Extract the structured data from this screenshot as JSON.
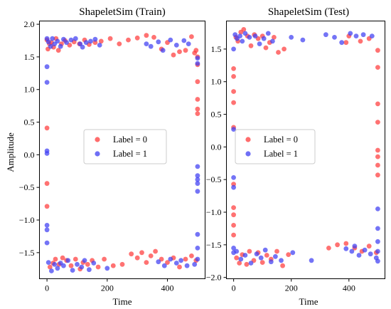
{
  "colors": {
    "label0": "#ff3b3b",
    "label1": "#3f3ff2"
  },
  "chart_data": [
    {
      "type": "scatter",
      "title": "ShapeletSim (Train)",
      "xlabel": "Time",
      "ylabel": "Amplitude",
      "xlim": [
        -25,
        525
      ],
      "ylim": [
        -1.9,
        2.05
      ],
      "xticks": [
        0,
        200,
        400
      ],
      "xtick_labels": [
        "0",
        "200",
        "400"
      ],
      "yticks": [
        2.0,
        1.5,
        1.0,
        0.5,
        0.0,
        -0.5,
        -1.0,
        -1.5
      ],
      "ytick_labels": [
        "2.0",
        "1.5",
        "1.0",
        "0.5",
        "0.0",
        "−0.5",
        "−1.0",
        "−1.5"
      ],
      "legend": {
        "position": "center",
        "entries": [
          "Label = 0",
          "Label = 1"
        ]
      },
      "grid": false,
      "series": [
        {
          "name": "Label = 0",
          "points": [
            [
              0,
              1.76
            ],
            [
              0,
              0.41
            ],
            [
              0,
              -0.44
            ],
            [
              0,
              -0.79
            ],
            [
              3,
              1.62
            ],
            [
              8,
              1.7
            ],
            [
              15,
              1.72
            ],
            [
              22,
              1.65
            ],
            [
              30,
              1.78
            ],
            [
              38,
              1.6
            ],
            [
              48,
              1.7
            ],
            [
              60,
              1.75
            ],
            [
              75,
              1.68
            ],
            [
              90,
              1.73
            ],
            [
              108,
              1.7
            ],
            [
              125,
              1.76
            ],
            [
              140,
              1.69
            ],
            [
              160,
              1.72
            ],
            [
              180,
              1.74
            ],
            [
              210,
              1.78
            ],
            [
              240,
              1.7
            ],
            [
              270,
              1.76
            ],
            [
              300,
              1.79
            ],
            [
              330,
              1.83
            ],
            [
              355,
              1.8
            ],
            [
              380,
              1.62
            ],
            [
              400,
              1.72
            ],
            [
              420,
              1.53
            ],
            [
              440,
              1.58
            ],
            [
              460,
              1.6
            ],
            [
              480,
              1.81
            ],
            [
              490,
              1.56
            ],
            [
              495,
              1.6
            ],
            [
              500,
              1.5
            ],
            [
              500,
              1.38
            ],
            [
              500,
              1.12
            ],
            [
              500,
              0.85
            ],
            [
              500,
              0.7
            ],
            [
              500,
              0.63
            ],
            [
              10,
              -1.72
            ],
            [
              20,
              -1.66
            ],
            [
              28,
              -1.6
            ],
            [
              40,
              -1.68
            ],
            [
              52,
              -1.58
            ],
            [
              65,
              -1.62
            ],
            [
              80,
              -1.7
            ],
            [
              95,
              -1.6
            ],
            [
              110,
              -1.75
            ],
            [
              120,
              -1.65
            ],
            [
              135,
              -1.68
            ],
            [
              150,
              -1.62
            ],
            [
              170,
              -1.72
            ],
            [
              190,
              -1.6
            ],
            [
              220,
              -1.7
            ],
            [
              250,
              -1.68
            ],
            [
              280,
              -1.52
            ],
            [
              300,
              -1.58
            ],
            [
              315,
              -1.5
            ],
            [
              330,
              -1.65
            ],
            [
              345,
              -1.55
            ],
            [
              360,
              -1.48
            ],
            [
              380,
              -1.6
            ],
            [
              400,
              -1.65
            ],
            [
              420,
              -1.58
            ],
            [
              440,
              -1.72
            ],
            [
              460,
              -1.6
            ],
            [
              480,
              -1.55
            ],
            [
              495,
              -1.62
            ]
          ]
        },
        {
          "name": "Label = 1",
          "points": [
            [
              0,
              1.78
            ],
            [
              0,
              1.35
            ],
            [
              0,
              1.11
            ],
            [
              0,
              0.06
            ],
            [
              0,
              0.02
            ],
            [
              0,
              -1.08
            ],
            [
              0,
              -1.15
            ],
            [
              0,
              -1.35
            ],
            [
              5,
              1.73
            ],
            [
              12,
              1.66
            ],
            [
              18,
              1.78
            ],
            [
              25,
              1.7
            ],
            [
              35,
              1.74
            ],
            [
              45,
              1.66
            ],
            [
              55,
              1.77
            ],
            [
              65,
              1.72
            ],
            [
              80,
              1.76
            ],
            [
              95,
              1.78
            ],
            [
              110,
              1.7
            ],
            [
              118,
              1.65
            ],
            [
              130,
              1.72
            ],
            [
              145,
              1.74
            ],
            [
              160,
              1.77
            ],
            [
              175,
              1.68
            ],
            [
              330,
              1.7
            ],
            [
              345,
              1.66
            ],
            [
              370,
              1.73
            ],
            [
              385,
              1.6
            ],
            [
              410,
              1.76
            ],
            [
              430,
              1.68
            ],
            [
              455,
              1.75
            ],
            [
              470,
              1.7
            ],
            [
              500,
              1.48
            ],
            [
              500,
              1.4
            ],
            [
              500,
              -0.18
            ],
            [
              500,
              -0.32
            ],
            [
              500,
              -0.38
            ],
            [
              500,
              -0.44
            ],
            [
              500,
              -0.56
            ],
            [
              500,
              -1.22
            ],
            [
              500,
              -1.43
            ],
            [
              500,
              -1.6
            ],
            [
              5,
              -1.65
            ],
            [
              15,
              -1.78
            ],
            [
              25,
              -1.68
            ],
            [
              35,
              -1.74
            ],
            [
              45,
              -1.66
            ],
            [
              55,
              -1.7
            ],
            [
              70,
              -1.62
            ],
            [
              85,
              -1.77
            ],
            [
              100,
              -1.68
            ],
            [
              115,
              -1.72
            ],
            [
              125,
              -1.62
            ],
            [
              140,
              -1.76
            ],
            [
              155,
              -1.66
            ],
            [
              200,
              -1.74
            ],
            [
              370,
              -1.64
            ],
            [
              390,
              -1.7
            ],
            [
              410,
              -1.6
            ],
            [
              430,
              -1.66
            ],
            [
              445,
              -1.62
            ],
            [
              465,
              -1.7
            ],
            [
              490,
              -1.68
            ]
          ]
        }
      ]
    },
    {
      "type": "scatter",
      "title": "ShapeletSim (Test)",
      "xlabel": "Time",
      "ylabel": "",
      "xlim": [
        -25,
        525
      ],
      "ylim": [
        -2.02,
        1.93
      ],
      "xticks": [
        0,
        200,
        400
      ],
      "xtick_labels": [
        "0",
        "200",
        "400"
      ],
      "yticks": [
        1.5,
        1.0,
        0.5,
        0.0,
        -0.5,
        -1.0,
        -1.5,
        -2.0
      ],
      "ytick_labels": [
        "1.5",
        "1.0",
        "0.5",
        "0.0",
        "−0.5",
        "−1.0",
        "−1.5",
        "−2.0"
      ],
      "legend": {
        "position": "center",
        "entries": [
          "Label = 0",
          "Label = 1"
        ]
      },
      "grid": false,
      "series": [
        {
          "name": "Label = 0",
          "points": [
            [
              0,
              1.2
            ],
            [
              0,
              1.08
            ],
            [
              0,
              0.85
            ],
            [
              0,
              0.68
            ],
            [
              0,
              0.3
            ],
            [
              0,
              -0.57
            ],
            [
              0,
              -0.93
            ],
            [
              0,
              -1.04
            ],
            [
              0,
              -1.2
            ],
            [
              0,
              -1.35
            ],
            [
              8,
              1.68
            ],
            [
              15,
              1.62
            ],
            [
              25,
              1.76
            ],
            [
              35,
              1.8
            ],
            [
              48,
              1.7
            ],
            [
              60,
              1.55
            ],
            [
              72,
              1.72
            ],
            [
              85,
              1.66
            ],
            [
              100,
              1.7
            ],
            [
              112,
              1.52
            ],
            [
              125,
              1.6
            ],
            [
              140,
              1.68
            ],
            [
              155,
              1.45
            ],
            [
              175,
              1.5
            ],
            [
              390,
              1.6
            ],
            [
              400,
              1.7
            ],
            [
              440,
              1.62
            ],
            [
              470,
              1.66
            ],
            [
              500,
              1.48
            ],
            [
              500,
              1.22
            ],
            [
              500,
              0.66
            ],
            [
              500,
              0.38
            ],
            [
              500,
              -0.05
            ],
            [
              500,
              -0.15
            ],
            [
              500,
              -0.28
            ],
            [
              500,
              -0.43
            ],
            [
              10,
              -1.7
            ],
            [
              20,
              -1.78
            ],
            [
              30,
              -1.65
            ],
            [
              45,
              -1.8
            ],
            [
              55,
              -1.6
            ],
            [
              70,
              -1.74
            ],
            [
              85,
              -1.62
            ],
            [
              100,
              -1.77
            ],
            [
              115,
              -1.66
            ],
            [
              130,
              -1.72
            ],
            [
              150,
              -1.6
            ],
            [
              170,
              -1.82
            ],
            [
              190,
              -1.65
            ],
            [
              330,
              -1.55
            ],
            [
              360,
              -1.5
            ],
            [
              390,
              -1.48
            ],
            [
              420,
              -1.55
            ],
            [
              445,
              -1.6
            ],
            [
              470,
              -1.52
            ],
            [
              495,
              -1.62
            ]
          ]
        },
        {
          "name": "Label = 1",
          "points": [
            [
              0,
              1.5
            ],
            [
              0,
              0.27
            ],
            [
              0,
              -0.47
            ],
            [
              0,
              -0.62
            ],
            [
              0,
              -1.55
            ],
            [
              0,
              -1.62
            ],
            [
              5,
              1.72
            ],
            [
              12,
              1.66
            ],
            [
              22,
              1.7
            ],
            [
              30,
              1.62
            ],
            [
              40,
              1.74
            ],
            [
              55,
              1.68
            ],
            [
              75,
              1.7
            ],
            [
              90,
              1.58
            ],
            [
              105,
              1.66
            ],
            [
              120,
              1.74
            ],
            [
              135,
              1.62
            ],
            [
              200,
              1.68
            ],
            [
              240,
              1.64
            ],
            [
              320,
              1.72
            ],
            [
              350,
              1.68
            ],
            [
              375,
              1.6
            ],
            [
              405,
              1.74
            ],
            [
              425,
              1.7
            ],
            [
              450,
              1.72
            ],
            [
              480,
              1.7
            ],
            [
              500,
              -0.95
            ],
            [
              500,
              -1.25
            ],
            [
              500,
              -1.45
            ],
            [
              500,
              -1.6
            ],
            [
              500,
              -1.75
            ],
            [
              10,
              -1.6
            ],
            [
              25,
              -1.72
            ],
            [
              40,
              -1.66
            ],
            [
              60,
              -1.78
            ],
            [
              80,
              -1.64
            ],
            [
              95,
              -1.7
            ],
            [
              110,
              -1.58
            ],
            [
              130,
              -1.76
            ],
            [
              145,
              -1.68
            ],
            [
              165,
              -1.74
            ],
            [
              205,
              -1.62
            ],
            [
              270,
              -1.74
            ],
            [
              390,
              -1.56
            ],
            [
              410,
              -1.6
            ],
            [
              420,
              -1.52
            ],
            [
              435,
              -1.66
            ],
            [
              455,
              -1.58
            ],
            [
              475,
              -1.64
            ],
            [
              495,
              -1.7
            ]
          ]
        }
      ]
    }
  ]
}
